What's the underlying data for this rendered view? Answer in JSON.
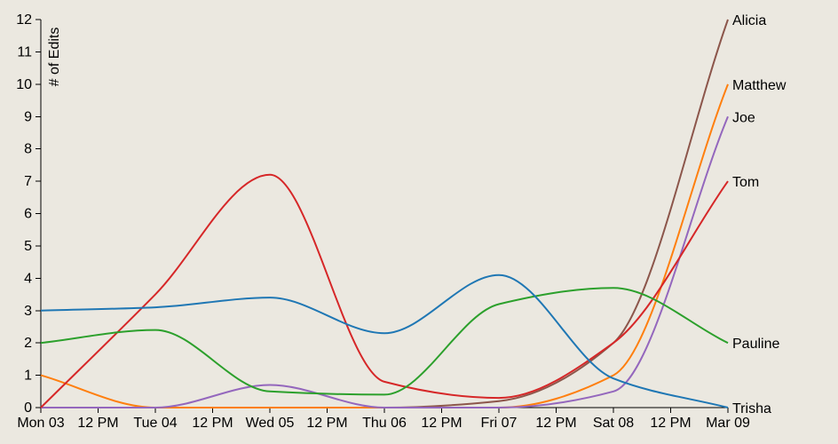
{
  "chart_data": {
    "type": "line",
    "title": "",
    "xlabel": "",
    "ylabel": "# of Edits",
    "ylim": [
      0,
      12
    ],
    "y_ticks": [
      "0",
      "1",
      "2",
      "3",
      "4",
      "5",
      "6",
      "7",
      "8",
      "9",
      "10",
      "11",
      "12"
    ],
    "x_ticks": [
      "Mon 03",
      "12 PM",
      "Tue 04",
      "12 PM",
      "Wed 05",
      "12 PM",
      "Thu 06",
      "12 PM",
      "Fri 07",
      "12 PM",
      "Sat 08",
      "12 PM",
      "Mar 09"
    ],
    "grid": false,
    "legend": "line-end labels",
    "x": [
      "2014-03-03",
      "2014-03-04",
      "2014-03-05",
      "2014-03-06",
      "2014-03-07",
      "2014-03-08",
      "2014-03-09"
    ],
    "series": [
      {
        "name": "Alicia",
        "color": "#8c564b",
        "values": [
          0,
          0,
          0,
          0,
          0.2,
          2,
          12
        ]
      },
      {
        "name": "Matthew",
        "color": "#ff7f0e",
        "values": [
          1,
          0,
          0,
          0,
          0,
          1,
          10
        ]
      },
      {
        "name": "Joe",
        "color": "#9467bd",
        "values": [
          0,
          0,
          0.7,
          0,
          0,
          0.5,
          9
        ]
      },
      {
        "name": "Tom",
        "color": "#d62728",
        "values": [
          0,
          3.5,
          7.2,
          0.8,
          0.3,
          2,
          7
        ]
      },
      {
        "name": "Pauline",
        "color": "#2ca02c",
        "values": [
          2,
          2.4,
          0.5,
          0.4,
          3.2,
          3.7,
          2
        ]
      },
      {
        "name": "Trisha",
        "color": "#1f77b4",
        "values": [
          3,
          3.1,
          3.4,
          2.3,
          4.1,
          0.9,
          0
        ]
      }
    ]
  }
}
